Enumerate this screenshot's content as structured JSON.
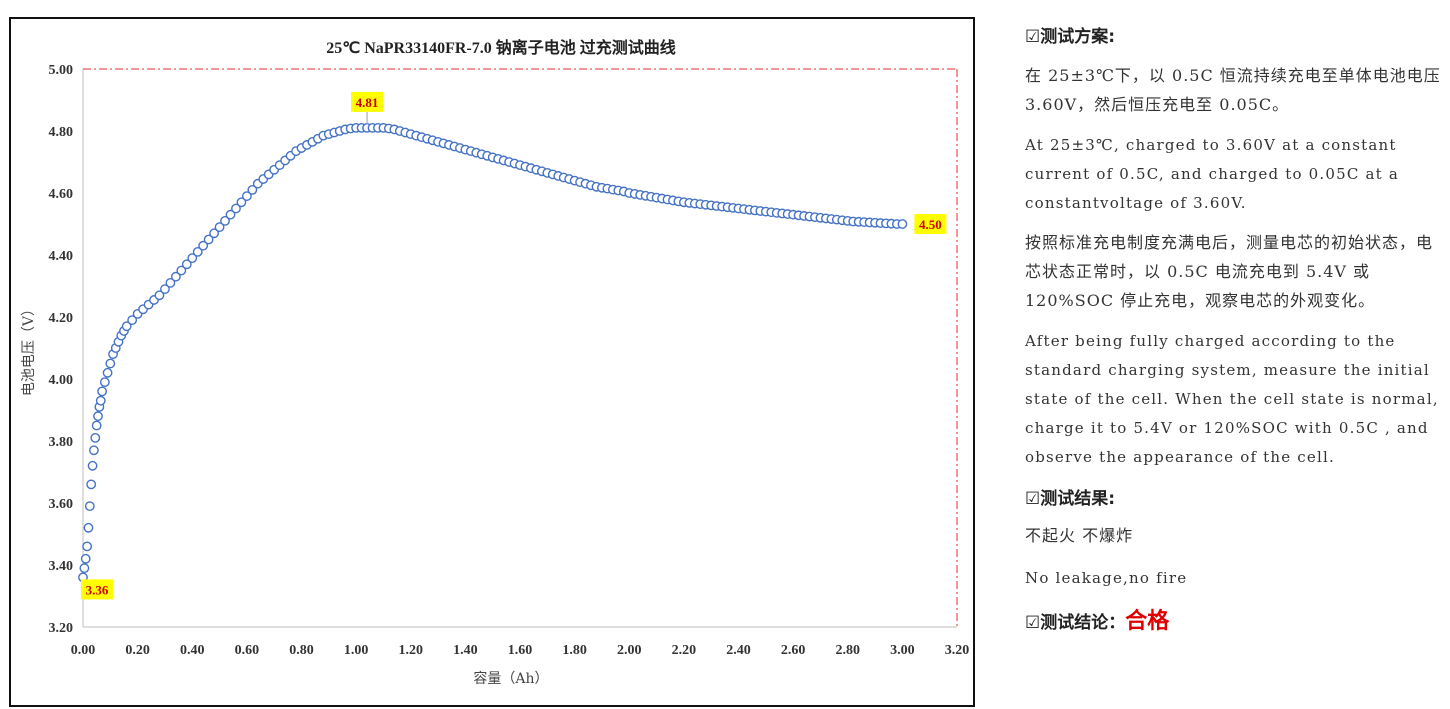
{
  "chart_data": {
    "type": "scatter",
    "title": "25℃ NaPR33140FR-7.0 钠离子电池 过充测试曲线",
    "xlabel": "容量（Ah）",
    "ylabel": "电池电压（V）",
    "xlim": [
      0.0,
      3.2
    ],
    "ylim": [
      3.2,
      5.0
    ],
    "x_ticks": [
      "0.00",
      "0.20",
      "0.40",
      "0.60",
      "0.80",
      "1.00",
      "1.20",
      "1.40",
      "1.60",
      "1.80",
      "2.00",
      "2.20",
      "2.40",
      "2.60",
      "2.80",
      "3.00",
      "3.20"
    ],
    "y_ticks": [
      "3.20",
      "3.40",
      "3.60",
      "3.80",
      "4.00",
      "4.20",
      "4.40",
      "4.60",
      "4.80",
      "5.00"
    ],
    "grid": false,
    "marker": "open-circle",
    "series_color": "#4472c4",
    "limit_lines": {
      "style": "dash-dot",
      "color": "#e03030",
      "y": 5.0,
      "x": 3.2
    },
    "points": [
      [
        0.0,
        3.36
      ],
      [
        0.005,
        3.39
      ],
      [
        0.01,
        3.42
      ],
      [
        0.015,
        3.46
      ],
      [
        0.02,
        3.52
      ],
      [
        0.025,
        3.59
      ],
      [
        0.03,
        3.66
      ],
      [
        0.035,
        3.72
      ],
      [
        0.04,
        3.77
      ],
      [
        0.045,
        3.81
      ],
      [
        0.05,
        3.85
      ],
      [
        0.055,
        3.88
      ],
      [
        0.06,
        3.91
      ],
      [
        0.065,
        3.93
      ],
      [
        0.07,
        3.96
      ],
      [
        0.08,
        3.99
      ],
      [
        0.09,
        4.02
      ],
      [
        0.1,
        4.05
      ],
      [
        0.11,
        4.08
      ],
      [
        0.12,
        4.1
      ],
      [
        0.13,
        4.12
      ],
      [
        0.14,
        4.14
      ],
      [
        0.15,
        4.155
      ],
      [
        0.16,
        4.17
      ],
      [
        0.18,
        4.19
      ],
      [
        0.2,
        4.21
      ],
      [
        0.22,
        4.225
      ],
      [
        0.24,
        4.24
      ],
      [
        0.26,
        4.255
      ],
      [
        0.28,
        4.27
      ],
      [
        0.3,
        4.29
      ],
      [
        0.32,
        4.31
      ],
      [
        0.34,
        4.33
      ],
      [
        0.36,
        4.35
      ],
      [
        0.38,
        4.37
      ],
      [
        0.4,
        4.39
      ],
      [
        0.42,
        4.41
      ],
      [
        0.44,
        4.43
      ],
      [
        0.46,
        4.45
      ],
      [
        0.48,
        4.47
      ],
      [
        0.5,
        4.49
      ],
      [
        0.52,
        4.51
      ],
      [
        0.54,
        4.53
      ],
      [
        0.56,
        4.55
      ],
      [
        0.58,
        4.57
      ],
      [
        0.6,
        4.59
      ],
      [
        0.62,
        4.61
      ],
      [
        0.64,
        4.63
      ],
      [
        0.66,
        4.645
      ],
      [
        0.68,
        4.66
      ],
      [
        0.7,
        4.675
      ],
      [
        0.72,
        4.69
      ],
      [
        0.74,
        4.705
      ],
      [
        0.76,
        4.72
      ],
      [
        0.78,
        4.735
      ],
      [
        0.8,
        4.745
      ],
      [
        0.82,
        4.755
      ],
      [
        0.84,
        4.765
      ],
      [
        0.86,
        4.775
      ],
      [
        0.88,
        4.785
      ],
      [
        0.9,
        4.79
      ],
      [
        0.92,
        4.795
      ],
      [
        0.94,
        4.8
      ],
      [
        0.96,
        4.805
      ],
      [
        0.98,
        4.808
      ],
      [
        1.0,
        4.81
      ],
      [
        1.02,
        4.81
      ],
      [
        1.04,
        4.81
      ],
      [
        1.06,
        4.81
      ],
      [
        1.08,
        4.81
      ],
      [
        1.1,
        4.81
      ],
      [
        1.12,
        4.808
      ],
      [
        1.14,
        4.805
      ],
      [
        1.16,
        4.8
      ],
      [
        1.18,
        4.795
      ],
      [
        1.2,
        4.79
      ],
      [
        1.22,
        4.785
      ],
      [
        1.24,
        4.78
      ],
      [
        1.26,
        4.775
      ],
      [
        1.28,
        4.77
      ],
      [
        1.3,
        4.765
      ],
      [
        1.32,
        4.76
      ],
      [
        1.34,
        4.755
      ],
      [
        1.36,
        4.75
      ],
      [
        1.38,
        4.745
      ],
      [
        1.4,
        4.74
      ],
      [
        1.42,
        4.735
      ],
      [
        1.44,
        4.73
      ],
      [
        1.46,
        4.725
      ],
      [
        1.48,
        4.72
      ],
      [
        1.5,
        4.715
      ],
      [
        1.52,
        4.71
      ],
      [
        1.54,
        4.705
      ],
      [
        1.56,
        4.7
      ],
      [
        1.58,
        4.695
      ],
      [
        1.6,
        4.69
      ],
      [
        1.62,
        4.685
      ],
      [
        1.64,
        4.68
      ],
      [
        1.66,
        4.675
      ],
      [
        1.68,
        4.67
      ],
      [
        1.7,
        4.665
      ],
      [
        1.72,
        4.66
      ],
      [
        1.74,
        4.655
      ],
      [
        1.76,
        4.65
      ],
      [
        1.78,
        4.645
      ],
      [
        1.8,
        4.64
      ],
      [
        1.82,
        4.635
      ],
      [
        1.84,
        4.63
      ],
      [
        1.86,
        4.625
      ],
      [
        1.88,
        4.62
      ],
      [
        1.9,
        4.617
      ],
      [
        1.92,
        4.614
      ],
      [
        1.94,
        4.611
      ],
      [
        1.96,
        4.608
      ],
      [
        1.98,
        4.605
      ],
      [
        2.0,
        4.6
      ],
      [
        2.02,
        4.597
      ],
      [
        2.04,
        4.594
      ],
      [
        2.06,
        4.591
      ],
      [
        2.08,
        4.588
      ],
      [
        2.1,
        4.585
      ],
      [
        2.12,
        4.582
      ],
      [
        2.14,
        4.579
      ],
      [
        2.16,
        4.576
      ],
      [
        2.18,
        4.573
      ],
      [
        2.2,
        4.57
      ],
      [
        2.22,
        4.568
      ],
      [
        2.24,
        4.566
      ],
      [
        2.26,
        4.564
      ],
      [
        2.28,
        4.562
      ],
      [
        2.3,
        4.56
      ],
      [
        2.32,
        4.558
      ],
      [
        2.34,
        4.556
      ],
      [
        2.36,
        4.554
      ],
      [
        2.38,
        4.552
      ],
      [
        2.4,
        4.55
      ],
      [
        2.42,
        4.548
      ],
      [
        2.44,
        4.546
      ],
      [
        2.46,
        4.544
      ],
      [
        2.48,
        4.542
      ],
      [
        2.5,
        4.54
      ],
      [
        2.52,
        4.538
      ],
      [
        2.54,
        4.536
      ],
      [
        2.56,
        4.534
      ],
      [
        2.58,
        4.532
      ],
      [
        2.6,
        4.53
      ],
      [
        2.62,
        4.528
      ],
      [
        2.64,
        4.526
      ],
      [
        2.66,
        4.524
      ],
      [
        2.68,
        4.522
      ],
      [
        2.7,
        4.52
      ],
      [
        2.72,
        4.518
      ],
      [
        2.74,
        4.516
      ],
      [
        2.76,
        4.514
      ],
      [
        2.78,
        4.512
      ],
      [
        2.8,
        4.51
      ],
      [
        2.82,
        4.508
      ],
      [
        2.84,
        4.507
      ],
      [
        2.86,
        4.506
      ],
      [
        2.88,
        4.505
      ],
      [
        2.9,
        4.504
      ],
      [
        2.92,
        4.503
      ],
      [
        2.94,
        4.502
      ],
      [
        2.96,
        4.501
      ],
      [
        2.98,
        4.5
      ],
      [
        3.0,
        4.5
      ]
    ],
    "annotations": [
      {
        "text": "3.36",
        "x": 0.0,
        "y": 3.36
      },
      {
        "text": "4.81",
        "x": 1.04,
        "y": 4.81
      },
      {
        "text": "4.50",
        "x": 3.0,
        "y": 4.5
      }
    ]
  },
  "panel": {
    "plan_heading": "测试方案",
    "heading_icon": "☑",
    "plan_cn": "在 25±3℃下，以 0.5C 恒流持续充电至单体电池电压 3.60V，然后恒压充电至 0.05C。",
    "plan_en": "At 25±3℃, charged to 3.60V at a constant current of 0.5C, and charged to 0.05C at a constantvoltage of 3.60V.",
    "proc_cn": "按照标准充电制度充满电后，测量电芯的初始状态，电芯状态正常时，以 0.5C 电流充电到 5.4V 或 120%SOC 停止充电，观察电芯的外观变化。",
    "proc_en": "After being fully charged according to the standard charging system,  measure the initial state of the cell. When the cell state is normal, charge it to 5.4V or 120%SOC with 0.5C , and observe the appearance of the cell.",
    "result_heading": "测试结果",
    "result_cn": "不起火 不爆炸",
    "result_en": "No leakage,no fire",
    "conclusion_heading": "测试结论",
    "conclusion_value": "合格",
    "pass_color": "#e00000"
  }
}
